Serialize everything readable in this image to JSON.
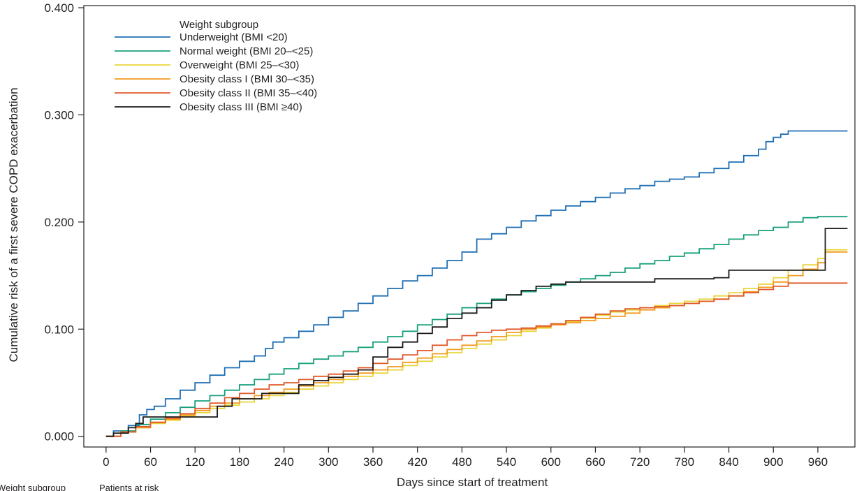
{
  "chart_data": {
    "type": "line",
    "title": "",
    "xlabel": "Days since start of treatment",
    "ylabel": "Cumulative risk of a first severe COPD exacerbation",
    "xlim": [
      -30,
      1010
    ],
    "ylim": [
      -0.01,
      0.402
    ],
    "xticks": [
      0,
      60,
      120,
      180,
      240,
      300,
      360,
      420,
      480,
      540,
      600,
      660,
      720,
      780,
      840,
      900,
      960
    ],
    "yticks": [
      0.0,
      0.1,
      0.2,
      0.3,
      0.4
    ],
    "ytick_labels": [
      "0.000",
      "0.100",
      "0.200",
      "0.300",
      "0.400"
    ],
    "legend": {
      "title": "Weight subgroup",
      "placement": "top-left"
    },
    "footer": {
      "left_label": "Weight subgroup",
      "right_label": "Patients at risk"
    },
    "grid": false,
    "step": true,
    "series": [
      {
        "name": "Underweight (BMI <20)",
        "color": "#1f6fb4",
        "x": [
          0,
          10,
          30,
          45,
          55,
          65,
          80,
          100,
          120,
          140,
          160,
          180,
          200,
          215,
          225,
          240,
          260,
          280,
          300,
          320,
          340,
          360,
          380,
          400,
          420,
          440,
          460,
          480,
          500,
          520,
          540,
          560,
          580,
          600,
          620,
          640,
          660,
          680,
          700,
          720,
          740,
          760,
          780,
          800,
          820,
          840,
          860,
          880,
          890,
          900,
          910,
          920,
          940,
          960,
          980,
          1000
        ],
        "y": [
          0,
          0.005,
          0.01,
          0.02,
          0.025,
          0.028,
          0.035,
          0.043,
          0.05,
          0.057,
          0.064,
          0.07,
          0.075,
          0.082,
          0.088,
          0.092,
          0.098,
          0.104,
          0.111,
          0.117,
          0.124,
          0.131,
          0.138,
          0.145,
          0.15,
          0.157,
          0.164,
          0.172,
          0.184,
          0.189,
          0.195,
          0.201,
          0.206,
          0.211,
          0.215,
          0.219,
          0.223,
          0.227,
          0.231,
          0.234,
          0.238,
          0.24,
          0.242,
          0.246,
          0.25,
          0.256,
          0.262,
          0.268,
          0.275,
          0.279,
          0.282,
          0.285,
          0.285,
          0.285,
          0.285,
          0.285
        ]
      },
      {
        "name": "Normal weight (BMI 20–<25)",
        "color": "#18a07c",
        "x": [
          0,
          20,
          40,
          60,
          80,
          100,
          120,
          140,
          160,
          180,
          200,
          220,
          240,
          260,
          280,
          300,
          320,
          340,
          360,
          380,
          400,
          420,
          440,
          460,
          480,
          500,
          520,
          540,
          560,
          580,
          600,
          620,
          640,
          660,
          680,
          700,
          720,
          740,
          760,
          780,
          800,
          820,
          840,
          860,
          880,
          900,
          920,
          940,
          960,
          980,
          1000
        ],
        "y": [
          0,
          0.005,
          0.011,
          0.016,
          0.022,
          0.027,
          0.033,
          0.038,
          0.043,
          0.048,
          0.053,
          0.058,
          0.063,
          0.068,
          0.072,
          0.075,
          0.079,
          0.083,
          0.088,
          0.093,
          0.098,
          0.104,
          0.109,
          0.114,
          0.12,
          0.124,
          0.128,
          0.132,
          0.135,
          0.138,
          0.141,
          0.144,
          0.147,
          0.15,
          0.153,
          0.157,
          0.161,
          0.164,
          0.168,
          0.171,
          0.175,
          0.179,
          0.184,
          0.188,
          0.192,
          0.195,
          0.2,
          0.204,
          0.205,
          0.205,
          0.205
        ]
      },
      {
        "name": "Overweight (BMI 25–<30)",
        "color": "#e8d63a",
        "x": [
          0,
          20,
          40,
          60,
          80,
          100,
          120,
          140,
          160,
          180,
          200,
          220,
          240,
          260,
          280,
          300,
          320,
          340,
          360,
          380,
          400,
          420,
          440,
          460,
          480,
          500,
          520,
          540,
          560,
          580,
          600,
          620,
          640,
          660,
          680,
          700,
          720,
          740,
          760,
          780,
          800,
          820,
          840,
          860,
          880,
          900,
          920,
          940,
          960,
          970,
          980,
          1000
        ],
        "y": [
          0,
          0.004,
          0.008,
          0.012,
          0.015,
          0.019,
          0.022,
          0.026,
          0.029,
          0.032,
          0.035,
          0.038,
          0.041,
          0.044,
          0.047,
          0.05,
          0.053,
          0.056,
          0.059,
          0.062,
          0.066,
          0.07,
          0.074,
          0.078,
          0.082,
          0.086,
          0.09,
          0.094,
          0.098,
          0.101,
          0.104,
          0.107,
          0.11,
          0.113,
          0.116,
          0.118,
          0.12,
          0.122,
          0.124,
          0.126,
          0.128,
          0.131,
          0.134,
          0.138,
          0.142,
          0.148,
          0.155,
          0.16,
          0.166,
          0.174,
          0.174,
          0.174
        ]
      },
      {
        "name": "Obesity class I (BMI 30–<35)",
        "color": "#f39a1f",
        "x": [
          0,
          20,
          40,
          60,
          80,
          100,
          120,
          140,
          160,
          180,
          200,
          220,
          240,
          260,
          280,
          300,
          320,
          340,
          360,
          380,
          400,
          420,
          440,
          460,
          480,
          500,
          520,
          540,
          560,
          580,
          600,
          620,
          640,
          660,
          680,
          700,
          720,
          740,
          760,
          780,
          800,
          820,
          840,
          860,
          880,
          900,
          920,
          940,
          960,
          970,
          980,
          1000
        ],
        "y": [
          0,
          0.004,
          0.008,
          0.013,
          0.016,
          0.02,
          0.024,
          0.028,
          0.031,
          0.035,
          0.038,
          0.041,
          0.044,
          0.047,
          0.05,
          0.053,
          0.056,
          0.059,
          0.062,
          0.065,
          0.069,
          0.073,
          0.077,
          0.081,
          0.085,
          0.089,
          0.093,
          0.097,
          0.1,
          0.102,
          0.104,
          0.106,
          0.108,
          0.11,
          0.112,
          0.115,
          0.118,
          0.12,
          0.122,
          0.124,
          0.126,
          0.128,
          0.131,
          0.135,
          0.139,
          0.144,
          0.15,
          0.156,
          0.162,
          0.172,
          0.172,
          0.172
        ]
      },
      {
        "name": "Obesity class II (BMI 35–<40)",
        "color": "#e0592b",
        "x": [
          0,
          20,
          40,
          60,
          80,
          100,
          120,
          140,
          160,
          180,
          200,
          220,
          240,
          260,
          280,
          300,
          320,
          340,
          360,
          380,
          400,
          420,
          440,
          460,
          480,
          500,
          520,
          540,
          560,
          580,
          600,
          620,
          640,
          660,
          680,
          700,
          720,
          740,
          760,
          780,
          800,
          820,
          840,
          860,
          880,
          900,
          920,
          940,
          960,
          980,
          1000
        ],
        "y": [
          0,
          0.004,
          0.009,
          0.013,
          0.017,
          0.021,
          0.026,
          0.031,
          0.036,
          0.04,
          0.044,
          0.048,
          0.05,
          0.053,
          0.056,
          0.058,
          0.061,
          0.064,
          0.068,
          0.072,
          0.076,
          0.08,
          0.085,
          0.09,
          0.094,
          0.097,
          0.099,
          0.1,
          0.101,
          0.103,
          0.105,
          0.108,
          0.111,
          0.114,
          0.117,
          0.119,
          0.12,
          0.121,
          0.122,
          0.124,
          0.126,
          0.128,
          0.131,
          0.134,
          0.137,
          0.14,
          0.143,
          0.143,
          0.143,
          0.143,
          0.143
        ]
      },
      {
        "name": "Obesity class III (BMI ≥40)",
        "color": "#1a1a1a",
        "x": [
          0,
          10,
          30,
          40,
          50,
          70,
          90,
          110,
          130,
          150,
          170,
          190,
          210,
          230,
          260,
          280,
          300,
          320,
          340,
          360,
          380,
          400,
          420,
          440,
          460,
          480,
          500,
          520,
          540,
          560,
          580,
          600,
          620,
          640,
          660,
          680,
          700,
          720,
          740,
          760,
          780,
          800,
          820,
          840,
          860,
          880,
          900,
          920,
          940,
          960,
          970,
          1000
        ],
        "y": [
          0,
          0.003,
          0.008,
          0.012,
          0.018,
          0.018,
          0.018,
          0.018,
          0.018,
          0.028,
          0.035,
          0.035,
          0.04,
          0.04,
          0.048,
          0.052,
          0.055,
          0.058,
          0.062,
          0.074,
          0.083,
          0.088,
          0.096,
          0.102,
          0.11,
          0.115,
          0.12,
          0.127,
          0.132,
          0.136,
          0.14,
          0.142,
          0.144,
          0.144,
          0.144,
          0.144,
          0.144,
          0.144,
          0.147,
          0.147,
          0.147,
          0.147,
          0.148,
          0.155,
          0.155,
          0.155,
          0.155,
          0.155,
          0.155,
          0.155,
          0.194,
          0.194
        ]
      }
    ]
  }
}
